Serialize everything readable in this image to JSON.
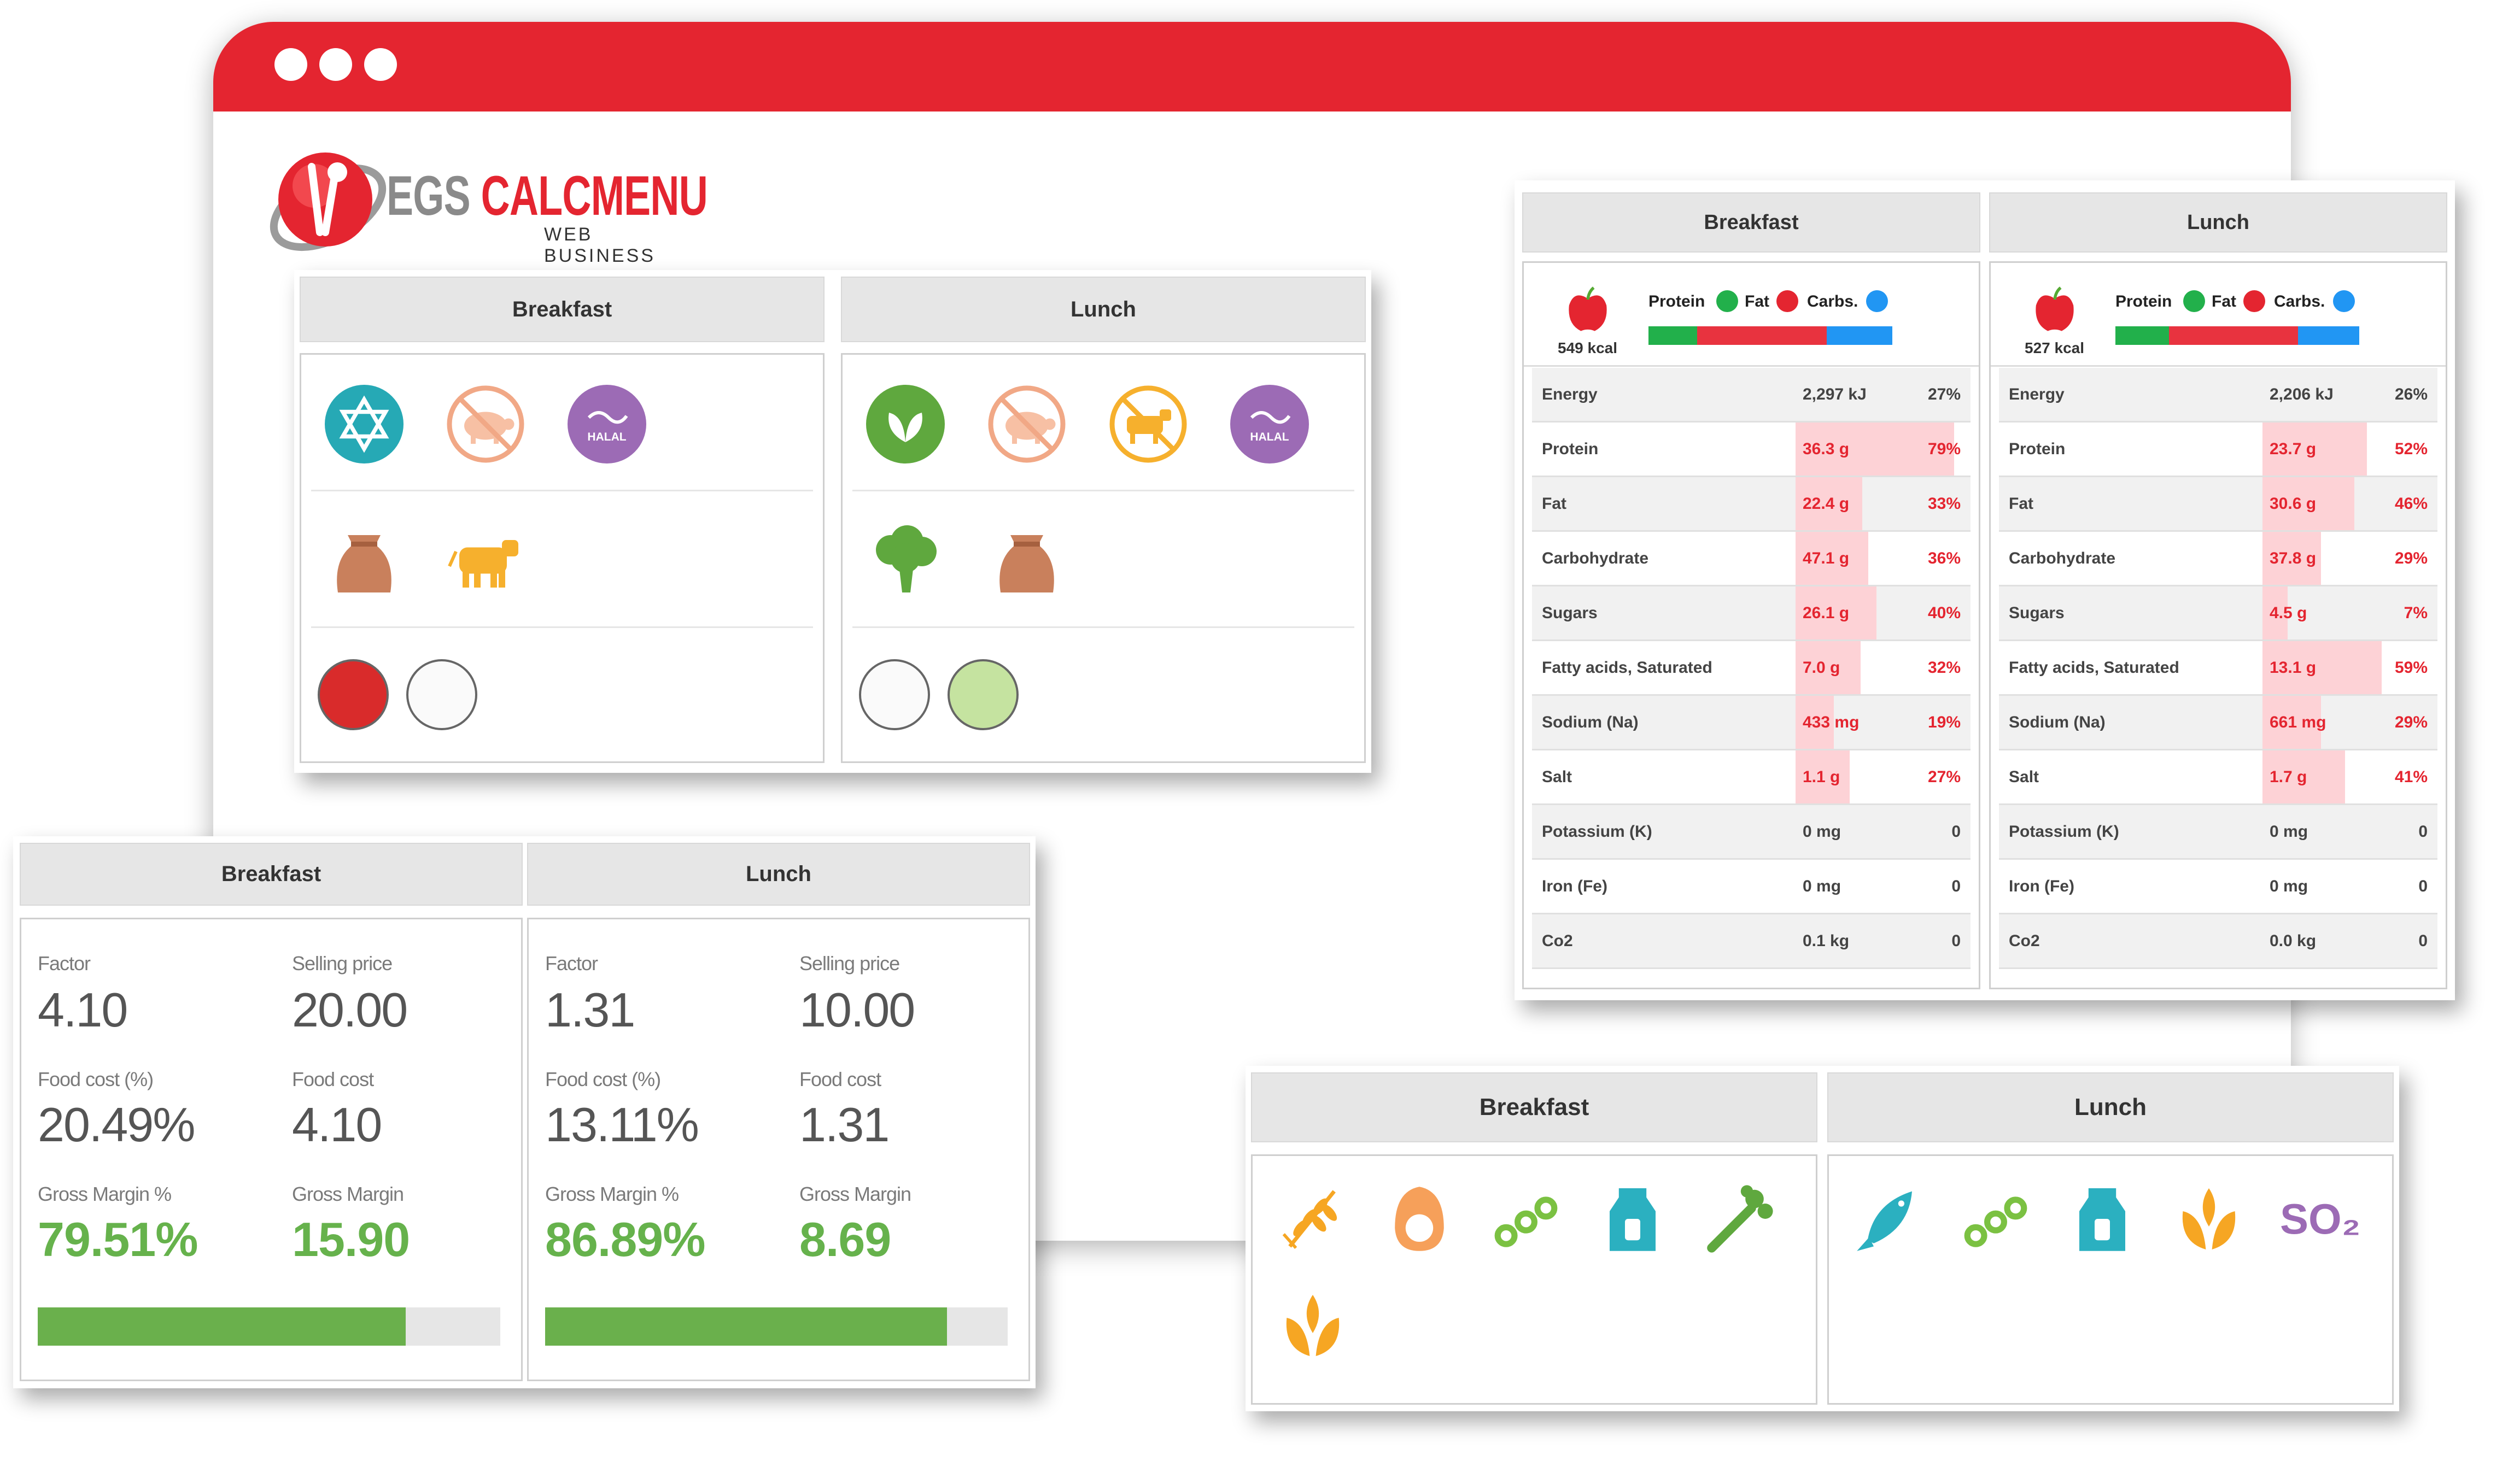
{
  "brand": {
    "name_a": "EGS",
    "name_b": "CALCMENU",
    "subtitle": "WEB BUSINESS"
  },
  "colors": {
    "accent": "#e42530",
    "green": "#66b24c",
    "blue": "#2196f3"
  },
  "diet_card": {
    "breakfast": {
      "title": "Breakfast",
      "row1": [
        "kosher-icon",
        "no-pork-icon",
        "halal-icon"
      ],
      "row2": [
        "grain-sack-icon",
        "cow-icon"
      ],
      "row3": [
        "red-indicator",
        "empty-indicator"
      ]
    },
    "lunch": {
      "title": "Lunch",
      "row1": [
        "vegan-icon",
        "no-pork-icon",
        "no-beef-icon",
        "halal-icon"
      ],
      "row2": [
        "broccoli-icon",
        "grain-sack-icon"
      ],
      "row3": [
        "empty-indicator",
        "green-indicator"
      ]
    },
    "halal_text": "HALAL"
  },
  "finance": {
    "breakfast": {
      "title": "Breakfast",
      "factor_label": "Factor",
      "factor": "4.10",
      "price_label": "Selling price",
      "price": "20.00",
      "fc_pct_label": "Food cost (%)",
      "fc_pct": "20.49%",
      "fc_label": "Food cost",
      "fc": "4.10",
      "gm_pct_label": "Gross Margin %",
      "gm_pct": "79.51%",
      "gm_label": "Gross Margin",
      "gm": "15.90",
      "margin_fraction": 0.7951
    },
    "lunch": {
      "title": "Lunch",
      "factor_label": "Factor",
      "factor": "1.31",
      "price_label": "Selling price",
      "price": "10.00",
      "fc_pct_label": "Food cost (%)",
      "fc_pct": "13.11%",
      "fc_label": "Food cost",
      "fc": "1.31",
      "gm_pct_label": "Gross Margin %",
      "gm_pct": "86.89%",
      "gm_label": "Gross Margin",
      "gm": "8.69",
      "margin_fraction": 0.8689
    }
  },
  "nutrition": {
    "macro_labels": {
      "protein": "Protein",
      "fat": "Fat",
      "carbs": "Carbs."
    },
    "breakfast": {
      "title": "Breakfast",
      "kcal": "549 kcal",
      "macro_split": [
        0.2,
        0.53,
        0.27
      ],
      "rows": [
        {
          "name": "Energy",
          "value": "2,297 kJ",
          "pct": "27%",
          "fill": 0,
          "warn": false
        },
        {
          "name": "Protein",
          "value": "36.3 g",
          "pct": "79%",
          "fill": 1.0,
          "warn": true
        },
        {
          "name": "Fat",
          "value": "22.4 g",
          "pct": "33%",
          "fill": 0.42,
          "warn": true
        },
        {
          "name": "Carbohydrate",
          "value": "47.1 g",
          "pct": "36%",
          "fill": 0.46,
          "warn": true
        },
        {
          "name": "Sugars",
          "value": "26.1 g",
          "pct": "40%",
          "fill": 0.51,
          "warn": true
        },
        {
          "name": "Fatty acids, Saturated",
          "value": "7.0 g",
          "pct": "32%",
          "fill": 0.41,
          "warn": true
        },
        {
          "name": "Sodium (Na)",
          "value": "433 mg",
          "pct": "19%",
          "fill": 0.24,
          "warn": true
        },
        {
          "name": "Salt",
          "value": "1.1 g",
          "pct": "27%",
          "fill": 0.34,
          "warn": true
        },
        {
          "name": "Potassium (K)",
          "value": "0 mg",
          "pct": "0",
          "fill": 0,
          "warn": false
        },
        {
          "name": "Iron (Fe)",
          "value": "0 mg",
          "pct": "0",
          "fill": 0,
          "warn": false
        },
        {
          "name": "Co2",
          "value": "0.1 kg",
          "pct": "0",
          "fill": 0,
          "warn": false
        }
      ]
    },
    "lunch": {
      "title": "Lunch",
      "kcal": "527 kcal",
      "macro_split": [
        0.22,
        0.53,
        0.25
      ],
      "rows": [
        {
          "name": "Energy",
          "value": "2,206 kJ",
          "pct": "26%",
          "fill": 0,
          "warn": false
        },
        {
          "name": "Protein",
          "value": "23.7 g",
          "pct": "52%",
          "fill": 0.66,
          "warn": true
        },
        {
          "name": "Fat",
          "value": "30.6 g",
          "pct": "46%",
          "fill": 0.58,
          "warn": true
        },
        {
          "name": "Carbohydrate",
          "value": "37.8 g",
          "pct": "29%",
          "fill": 0.37,
          "warn": true
        },
        {
          "name": "Sugars",
          "value": "4.5 g",
          "pct": "7%",
          "fill": 0.09,
          "warn": true
        },
        {
          "name": "Fatty acids, Saturated",
          "value": "13.1 g",
          "pct": "59%",
          "fill": 0.75,
          "warn": true
        },
        {
          "name": "Sodium (Na)",
          "value": "661 mg",
          "pct": "29%",
          "fill": 0.37,
          "warn": true
        },
        {
          "name": "Salt",
          "value": "1.7 g",
          "pct": "41%",
          "fill": 0.52,
          "warn": true
        },
        {
          "name": "Potassium (K)",
          "value": "0 mg",
          "pct": "0",
          "fill": 0,
          "warn": false
        },
        {
          "name": "Iron (Fe)",
          "value": "0 mg",
          "pct": "0",
          "fill": 0,
          "warn": false
        },
        {
          "name": "Co2",
          "value": "0.0 kg",
          "pct": "0",
          "fill": 0,
          "warn": false
        }
      ]
    }
  },
  "allergens": {
    "breakfast": {
      "title": "Breakfast",
      "icons": [
        "gluten-icon",
        "egg-icon",
        "peanut-icon",
        "milk-icon",
        "celery-icon",
        "nuts-icon"
      ]
    },
    "lunch": {
      "title": "Lunch",
      "icons": [
        "fish-icon",
        "peanut-icon",
        "milk-icon",
        "nuts-icon",
        "sulphite-icon"
      ]
    },
    "so2_text": "SO₂"
  }
}
